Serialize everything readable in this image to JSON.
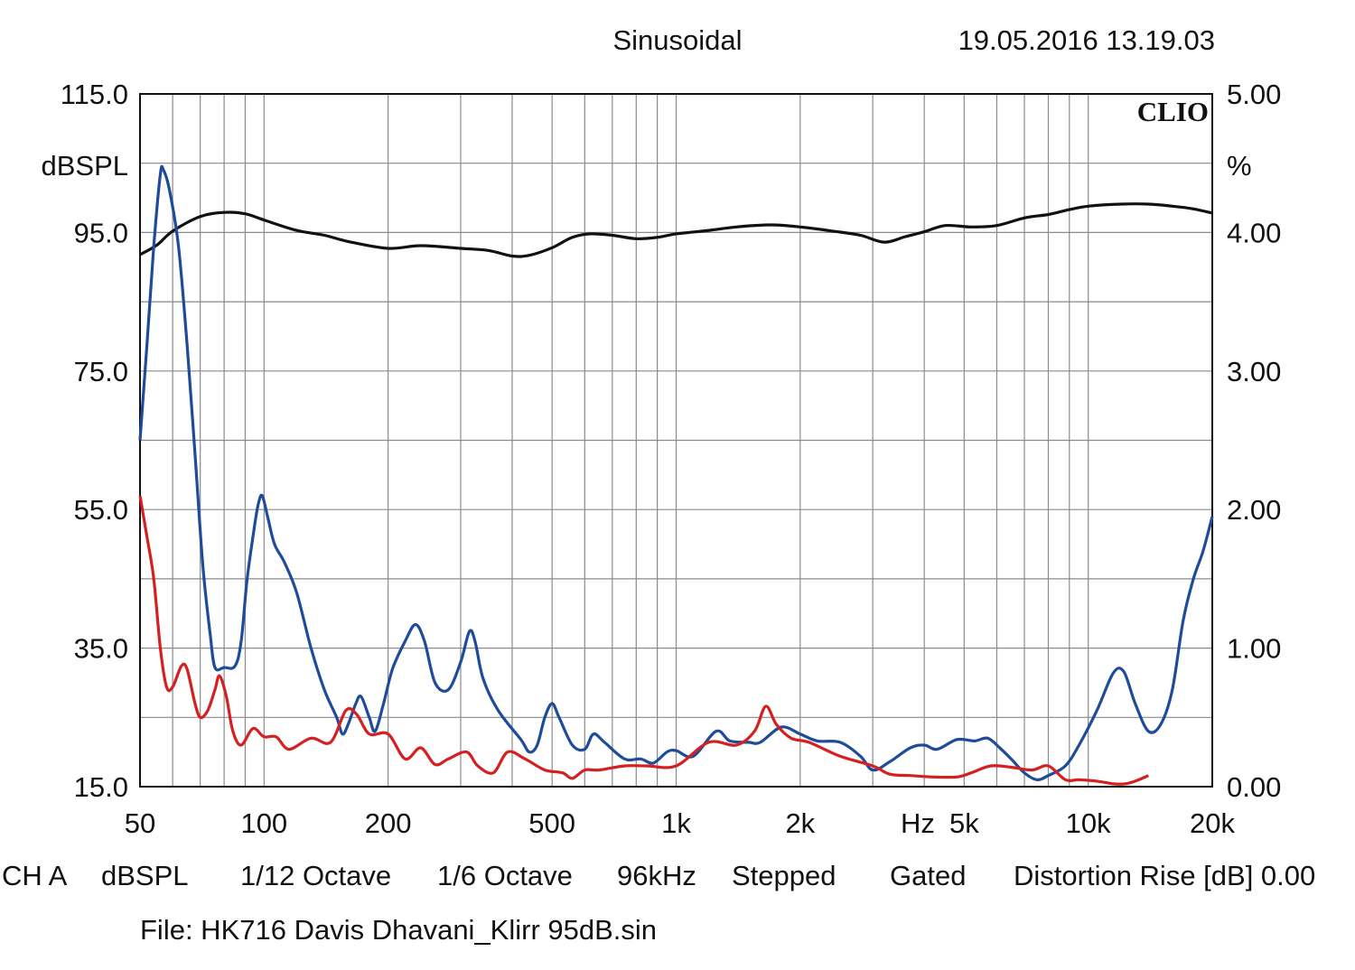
{
  "header": {
    "mode": "Sinusoidal",
    "timestamp": "19.05.2016 13.19.03"
  },
  "brand": "CLIO",
  "footer": {
    "channel": "CH A",
    "unit": "dBSPL",
    "smoothing": "1/12 Octave",
    "resolution": "1/6 Octave",
    "sample_rate": "96kHz",
    "method": "Stepped",
    "window": "Gated",
    "distortion_rise": "Distortion Rise [dB] 0.00",
    "file": "File: HK716 Davis Dhavani_Klirr 95dB.sin"
  },
  "chart_data": {
    "type": "line",
    "title": "Sinusoidal",
    "x_scale": "log",
    "xlim": [
      50,
      20000
    ],
    "x_ticks": [
      50,
      100,
      200,
      500,
      1000,
      2000,
      5000,
      10000,
      20000
    ],
    "x_tick_labels": [
      "50",
      "100",
      "200",
      "500",
      "1k",
      "2k",
      "5k",
      "10k",
      "20k"
    ],
    "x_unit_label": "Hz",
    "y_left": {
      "unit": "dBSPL",
      "ylim": [
        15,
        115
      ],
      "ticks": [
        15,
        35,
        55,
        75,
        95,
        115
      ],
      "tick_labels": [
        "15.0",
        "35.0",
        "55.0",
        "75.0",
        "95.0",
        "115.0"
      ]
    },
    "y_right": {
      "unit": "%",
      "ylim": [
        0,
        5
      ],
      "ticks": [
        0,
        1,
        2,
        3,
        4,
        5
      ],
      "tick_labels": [
        "0.00",
        "1.00",
        "2.00",
        "3.00",
        "4.00",
        "5.00"
      ]
    },
    "grid": true,
    "series": [
      {
        "color": "#111111",
        "axis": "left",
        "points": [
          [
            50,
            91.8
          ],
          [
            55,
            93.2
          ],
          [
            60,
            95.2
          ],
          [
            70,
            97.3
          ],
          [
            80,
            97.9
          ],
          [
            90,
            97.7
          ],
          [
            100,
            96.8
          ],
          [
            120,
            95.3
          ],
          [
            140,
            94.6
          ],
          [
            160,
            93.7
          ],
          [
            200,
            92.7
          ],
          [
            240,
            93.1
          ],
          [
            300,
            92.7
          ],
          [
            350,
            92.4
          ],
          [
            400,
            91.6
          ],
          [
            440,
            91.7
          ],
          [
            500,
            92.8
          ],
          [
            560,
            94.3
          ],
          [
            620,
            94.8
          ],
          [
            700,
            94.6
          ],
          [
            800,
            94.1
          ],
          [
            900,
            94.3
          ],
          [
            1000,
            94.8
          ],
          [
            1200,
            95.3
          ],
          [
            1400,
            95.8
          ],
          [
            1700,
            96.1
          ],
          [
            2000,
            95.8
          ],
          [
            2400,
            95.2
          ],
          [
            2800,
            94.6
          ],
          [
            3200,
            93.6
          ],
          [
            3600,
            94.4
          ],
          [
            4000,
            95.1
          ],
          [
            4500,
            96.0
          ],
          [
            5200,
            95.8
          ],
          [
            6000,
            96.0
          ],
          [
            7000,
            97.1
          ],
          [
            8000,
            97.6
          ],
          [
            9000,
            98.3
          ],
          [
            10000,
            98.8
          ],
          [
            12000,
            99.1
          ],
          [
            14000,
            99.1
          ],
          [
            16000,
            98.8
          ],
          [
            18000,
            98.4
          ],
          [
            20000,
            97.8
          ]
        ]
      },
      {
        "color": "#1f4b9b",
        "axis": "right",
        "points": [
          [
            50,
            2.5
          ],
          [
            52,
            3.2
          ],
          [
            54,
            3.9
          ],
          [
            56,
            4.42
          ],
          [
            57,
            4.45
          ],
          [
            59,
            4.3
          ],
          [
            62,
            3.9
          ],
          [
            65,
            3.2
          ],
          [
            68,
            2.4
          ],
          [
            71,
            1.6
          ],
          [
            74,
            1.1
          ],
          [
            76,
            0.86
          ],
          [
            80,
            0.86
          ],
          [
            85,
            0.87
          ],
          [
            88,
            1.05
          ],
          [
            91,
            1.5
          ],
          [
            95,
            1.9
          ],
          [
            97,
            2.05
          ],
          [
            99,
            2.1
          ],
          [
            102,
            1.95
          ],
          [
            106,
            1.75
          ],
          [
            112,
            1.62
          ],
          [
            120,
            1.4
          ],
          [
            130,
            1.0
          ],
          [
            140,
            0.7
          ],
          [
            150,
            0.5
          ],
          [
            155,
            0.38
          ],
          [
            160,
            0.45
          ],
          [
            167,
            0.6
          ],
          [
            172,
            0.65
          ],
          [
            180,
            0.5
          ],
          [
            186,
            0.4
          ],
          [
            195,
            0.6
          ],
          [
            205,
            0.85
          ],
          [
            220,
            1.05
          ],
          [
            233,
            1.17
          ],
          [
            245,
            1.05
          ],
          [
            260,
            0.75
          ],
          [
            280,
            0.7
          ],
          [
            300,
            0.9
          ],
          [
            315,
            1.12
          ],
          [
            325,
            1.05
          ],
          [
            340,
            0.78
          ],
          [
            370,
            0.55
          ],
          [
            420,
            0.34
          ],
          [
            440,
            0.25
          ],
          [
            460,
            0.3
          ],
          [
            480,
            0.5
          ],
          [
            500,
            0.6
          ],
          [
            520,
            0.5
          ],
          [
            560,
            0.3
          ],
          [
            600,
            0.27
          ],
          [
            630,
            0.38
          ],
          [
            670,
            0.32
          ],
          [
            750,
            0.2
          ],
          [
            820,
            0.2
          ],
          [
            880,
            0.17
          ],
          [
            950,
            0.25
          ],
          [
            1000,
            0.26
          ],
          [
            1100,
            0.22
          ],
          [
            1250,
            0.4
          ],
          [
            1350,
            0.33
          ],
          [
            1500,
            0.32
          ],
          [
            1600,
            0.32
          ],
          [
            1800,
            0.43
          ],
          [
            2000,
            0.38
          ],
          [
            2200,
            0.33
          ],
          [
            2500,
            0.32
          ],
          [
            2800,
            0.22
          ],
          [
            3000,
            0.12
          ],
          [
            3300,
            0.18
          ],
          [
            3700,
            0.28
          ],
          [
            4000,
            0.3
          ],
          [
            4300,
            0.27
          ],
          [
            4800,
            0.34
          ],
          [
            5300,
            0.33
          ],
          [
            5700,
            0.35
          ],
          [
            6100,
            0.28
          ],
          [
            6500,
            0.2
          ],
          [
            7000,
            0.1
          ],
          [
            7500,
            0.05
          ],
          [
            8000,
            0.08
          ],
          [
            8800,
            0.15
          ],
          [
            9500,
            0.3
          ],
          [
            10500,
            0.55
          ],
          [
            11500,
            0.82
          ],
          [
            12200,
            0.83
          ],
          [
            13000,
            0.6
          ],
          [
            14000,
            0.4
          ],
          [
            15000,
            0.45
          ],
          [
            16000,
            0.7
          ],
          [
            17000,
            1.2
          ],
          [
            18000,
            1.5
          ],
          [
            19000,
            1.7
          ],
          [
            20000,
            1.95
          ]
        ]
      },
      {
        "color": "#d42020",
        "axis": "right",
        "points": [
          [
            50,
            2.1
          ],
          [
            52,
            1.8
          ],
          [
            54,
            1.5
          ],
          [
            56,
            1.0
          ],
          [
            58,
            0.72
          ],
          [
            60,
            0.72
          ],
          [
            63,
            0.87
          ],
          [
            65,
            0.85
          ],
          [
            68,
            0.6
          ],
          [
            70,
            0.5
          ],
          [
            73,
            0.55
          ],
          [
            76,
            0.7
          ],
          [
            78,
            0.8
          ],
          [
            81,
            0.65
          ],
          [
            84,
            0.4
          ],
          [
            88,
            0.3
          ],
          [
            94,
            0.42
          ],
          [
            100,
            0.36
          ],
          [
            107,
            0.36
          ],
          [
            115,
            0.27
          ],
          [
            130,
            0.35
          ],
          [
            145,
            0.32
          ],
          [
            158,
            0.55
          ],
          [
            168,
            0.52
          ],
          [
            180,
            0.38
          ],
          [
            200,
            0.38
          ],
          [
            220,
            0.2
          ],
          [
            240,
            0.28
          ],
          [
            260,
            0.16
          ],
          [
            280,
            0.2
          ],
          [
            310,
            0.25
          ],
          [
            330,
            0.15
          ],
          [
            360,
            0.1
          ],
          [
            390,
            0.25
          ],
          [
            430,
            0.2
          ],
          [
            480,
            0.12
          ],
          [
            530,
            0.1
          ],
          [
            560,
            0.06
          ],
          [
            600,
            0.12
          ],
          [
            650,
            0.12
          ],
          [
            750,
            0.15
          ],
          [
            850,
            0.15
          ],
          [
            1000,
            0.15
          ],
          [
            1200,
            0.32
          ],
          [
            1400,
            0.3
          ],
          [
            1550,
            0.4
          ],
          [
            1650,
            0.58
          ],
          [
            1750,
            0.45
          ],
          [
            1900,
            0.35
          ],
          [
            2100,
            0.32
          ],
          [
            2500,
            0.22
          ],
          [
            3000,
            0.15
          ],
          [
            3300,
            0.09
          ],
          [
            3700,
            0.08
          ],
          [
            4200,
            0.07
          ],
          [
            4800,
            0.07
          ],
          [
            5200,
            0.1
          ],
          [
            5800,
            0.15
          ],
          [
            6500,
            0.14
          ],
          [
            7300,
            0.12
          ],
          [
            8000,
            0.15
          ],
          [
            8800,
            0.05
          ],
          [
            9500,
            0.05
          ],
          [
            10500,
            0.04
          ],
          [
            11500,
            0.02
          ],
          [
            12300,
            0.02
          ],
          [
            13000,
            0.04
          ],
          [
            14000,
            0.08
          ]
        ]
      }
    ]
  }
}
